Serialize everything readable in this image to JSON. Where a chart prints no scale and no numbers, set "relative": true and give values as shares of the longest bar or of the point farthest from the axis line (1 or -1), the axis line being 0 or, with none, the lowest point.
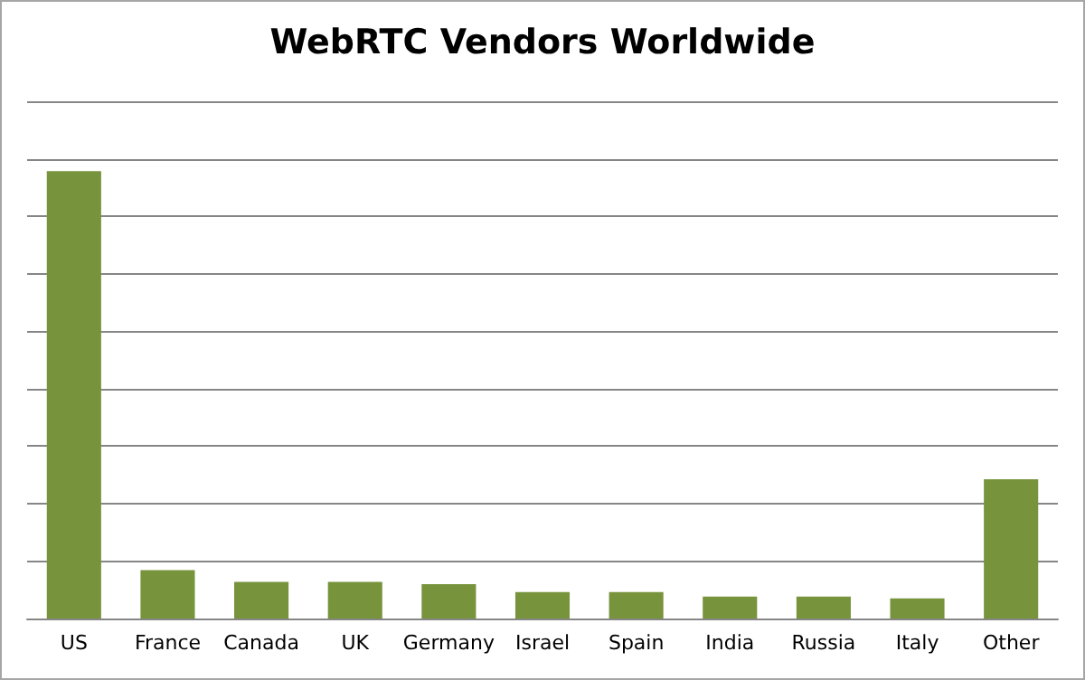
{
  "chart_data": {
    "type": "bar",
    "title": "WebRTC Vendors Worldwide",
    "relative": true,
    "categories": [
      "US",
      "France",
      "Canada",
      "UK",
      "Germany",
      "Israel",
      "Spain",
      "India",
      "Russia",
      "Italy",
      "Other"
    ],
    "values": [
      1,
      0.108,
      0.082,
      0.082,
      0.077,
      0.059,
      0.059,
      0.049,
      0.049,
      0.045,
      0.311
    ],
    "color": "#77933c",
    "grid": "y"
  }
}
